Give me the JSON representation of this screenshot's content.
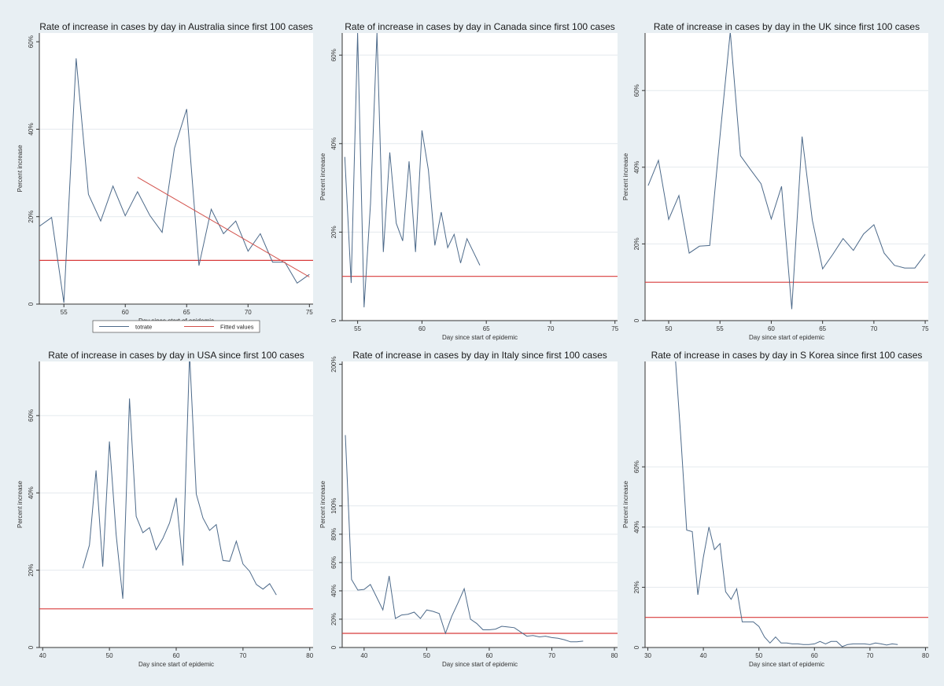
{
  "colors": {
    "background": "#e8eff3",
    "plot_bg": "#ffffff",
    "series_line": "#4d6a8a",
    "fitted_line": "#d2504a",
    "threshold_line": "#d83b3b",
    "grid": "#e4e9ee"
  },
  "legend": {
    "items": [
      {
        "label": "totrate",
        "color": "#4d6a8a"
      },
      {
        "label": "Fitted values",
        "color": "#d2504a"
      }
    ]
  },
  "chart_data": [
    {
      "type": "line",
      "title": "Rate of increase in cases by day in Australia since first 100 cases",
      "xlabel": "Day since start of epidemic",
      "ylabel": "Percent increase",
      "xlim": [
        53,
        75.3
      ],
      "ylim": [
        0,
        62
      ],
      "xticks": [
        55,
        60,
        65,
        70,
        75
      ],
      "yticks": [
        {
          "v": 0,
          "label": "0"
        },
        {
          "v": 20,
          "label": "20%"
        },
        {
          "v": 40,
          "label": "40%"
        },
        {
          "v": 60,
          "label": "60%"
        }
      ],
      "grid": [
        20,
        40
      ],
      "threshold": 10,
      "legend_placement": "bottom",
      "series": [
        {
          "name": "totrate",
          "x": [
            53,
            54,
            55,
            56,
            57,
            58,
            59,
            60,
            61,
            62,
            63,
            64,
            65,
            66,
            67,
            68,
            69,
            70,
            71,
            72,
            73,
            74,
            75
          ],
          "y": [
            17.8,
            19.8,
            0.3,
            56.2,
            25.1,
            19,
            27,
            20.2,
            25.7,
            20.3,
            16.4,
            35.6,
            44.6,
            8.8,
            21.7,
            16.1,
            19,
            12.1,
            16.1,
            9.6,
            9.6,
            4.8,
            6.8
          ]
        },
        {
          "name": "Fitted values",
          "x": [
            61,
            75
          ],
          "y": [
            29,
            6.2
          ]
        }
      ]
    },
    {
      "type": "line",
      "title": "Rate of increase in cases by day in Canada since first 100 cases",
      "xlabel": "Day since start of epidemic",
      "ylabel": "Percent increase",
      "xlim": [
        53.8,
        75.2
      ],
      "ylim": [
        0,
        65
      ],
      "xticks": [
        55,
        60,
        65,
        70,
        75
      ],
      "yticks": [
        {
          "v": 0,
          "label": "0"
        },
        {
          "v": 20,
          "label": "20%"
        },
        {
          "v": 40,
          "label": "40%"
        },
        {
          "v": 60,
          "label": "60%"
        }
      ],
      "grid": [
        20,
        40,
        60
      ],
      "threshold": 10,
      "series": [
        {
          "name": "totrate",
          "x": [
            54,
            54.5,
            55,
            55.5,
            56,
            56.5,
            57,
            57.5,
            58,
            58.5,
            59,
            59.5,
            60,
            60.5,
            61,
            61.5,
            62,
            62.5,
            63,
            63.5,
            64,
            64.5,
            65,
            65.5,
            66,
            66.5,
            67,
            67.5,
            68,
            68.5,
            69,
            69.5,
            70,
            70.5,
            71,
            71.5,
            72,
            72.5,
            73,
            73.5,
            74,
            74.5,
            75
          ],
          "y": [
            37,
            8.5,
            65,
            3,
            26.5,
            65,
            15.5,
            38,
            22,
            18,
            36,
            15.5,
            43,
            34,
            17,
            24.5,
            16.5,
            19.5,
            13,
            18.5,
            15.5,
            12.5,
            null,
            null,
            null,
            null,
            null,
            null,
            null,
            null,
            null,
            null,
            null,
            null,
            null,
            null,
            null,
            null,
            null,
            null,
            null,
            null,
            null
          ]
        }
      ]
    },
    {
      "type": "line",
      "title": "Rate of increase in cases by day in the UK since first 100 cases",
      "xlabel": "Day since start of epidemic",
      "ylabel": "Percent increase",
      "xlim": [
        47.7,
        75.3
      ],
      "ylim": [
        0,
        75
      ],
      "xticks": [
        50,
        55,
        60,
        65,
        70,
        75
      ],
      "yticks": [
        {
          "v": 0,
          "label": "0"
        },
        {
          "v": 20,
          "label": "20%"
        },
        {
          "v": 40,
          "label": "40%"
        },
        {
          "v": 60,
          "label": "60%"
        }
      ],
      "grid": [
        20,
        40,
        60
      ],
      "threshold": 10,
      "series": [
        {
          "name": "totrate",
          "x": [
            48,
            49,
            50,
            51,
            52,
            53,
            54,
            55,
            56,
            57,
            58,
            59,
            60,
            61,
            62,
            63,
            64,
            65,
            66,
            67,
            68,
            69,
            70,
            71,
            72,
            73,
            74,
            75
          ],
          "y": [
            35.2,
            41.8,
            26.4,
            32.6,
            17.6,
            19.4,
            19.6,
            48,
            75.3,
            43,
            39.3,
            35.7,
            26.5,
            35,
            3,
            48,
            26.2,
            13.5,
            17.3,
            21.4,
            18.3,
            22.6,
            25,
            17.6,
            14.4,
            13.7,
            13.7,
            17.3
          ]
        }
      ]
    },
    {
      "type": "line",
      "title": "Rate of increase in cases by day in USA since first 100 cases",
      "xlabel": "Day since start of epidemic",
      "ylabel": "Percent increase",
      "xlim": [
        39.5,
        80.5
      ],
      "ylim": [
        0,
        74
      ],
      "xticks": [
        40,
        50,
        60,
        70,
        80
      ],
      "yticks": [
        {
          "v": 0,
          "label": "0"
        },
        {
          "v": 20,
          "label": "20%"
        },
        {
          "v": 40,
          "label": "40%"
        },
        {
          "v": 60,
          "label": "60%"
        }
      ],
      "grid": [
        20,
        40,
        60
      ],
      "threshold": 10,
      "series": [
        {
          "name": "totrate",
          "x": [
            46,
            47,
            48,
            49,
            50,
            51,
            52,
            53,
            54,
            55,
            56,
            57,
            58,
            59,
            60,
            61,
            62,
            63,
            64,
            65,
            66,
            67,
            68,
            69,
            70,
            71,
            72,
            73,
            74,
            75
          ],
          "y": [
            20.5,
            26.5,
            45.8,
            20.9,
            53.3,
            29.3,
            12.6,
            64.4,
            33.9,
            29.7,
            31,
            25.3,
            28.2,
            32.2,
            38.7,
            21.2,
            76,
            39.7,
            33.5,
            30.3,
            31.8,
            22.5,
            22.3,
            27.5,
            21.6,
            19.7,
            16.3,
            15.1,
            16.5,
            13.6
          ]
        }
      ]
    },
    {
      "type": "line",
      "title": "Rate of increase in cases by day in Italy since first 100 cases",
      "xlabel": "Day since start of epidemic",
      "ylabel": "Percent increase",
      "xlim": [
        36.5,
        80.5
      ],
      "ylim": [
        0,
        202
      ],
      "xticks": [
        40,
        50,
        60,
        70,
        80
      ],
      "yticks": [
        {
          "v": 0,
          "label": "0"
        },
        {
          "v": 20,
          "label": "20%"
        },
        {
          "v": 40,
          "label": "40%"
        },
        {
          "v": 60,
          "label": "60%"
        },
        {
          "v": 80,
          "label": "80%"
        },
        {
          "v": 100,
          "label": "100%"
        },
        {
          "v": 200,
          "label": "200%"
        }
      ],
      "grid": [
        20,
        40,
        60,
        80,
        100
      ],
      "threshold": 10,
      "series": [
        {
          "name": "totrate",
          "x": [
            37,
            38,
            39,
            40,
            41,
            42,
            43,
            44,
            45,
            46,
            47,
            48,
            49,
            50,
            51,
            52,
            53,
            54,
            55,
            56,
            57,
            58,
            59,
            60,
            61,
            62,
            63,
            64,
            65,
            66,
            67,
            68,
            69,
            70,
            71,
            72,
            73,
            74,
            75
          ],
          "y": [
            150,
            48,
            40.5,
            41,
            44.5,
            35.5,
            26.5,
            50.5,
            20.5,
            23,
            23.5,
            25,
            20.5,
            26.5,
            25.5,
            24,
            10,
            22,
            31.5,
            41.5,
            20,
            17,
            12.5,
            12.5,
            13,
            15,
            14.5,
            14,
            11,
            8,
            8.5,
            7.5,
            8,
            7,
            6.5,
            5.5,
            4,
            4,
            4.5
          ]
        }
      ]
    },
    {
      "type": "line",
      "title": "Rate of increase in cases by day in S Korea since first 100 cases",
      "xlabel": "Day since start of epidemic",
      "ylabel": "Percent increase",
      "xlim": [
        29.5,
        80.5
      ],
      "ylim": [
        0,
        95
      ],
      "xticks": [
        30,
        40,
        50,
        60,
        70,
        80
      ],
      "yticks": [
        {
          "v": 0,
          "label": "0"
        },
        {
          "v": 20,
          "label": "20%"
        },
        {
          "v": 40,
          "label": "40%"
        },
        {
          "v": 60,
          "label": "60%"
        }
      ],
      "grid": [
        20,
        40,
        60
      ],
      "threshold": 10,
      "series": [
        {
          "name": "totrate",
          "x": [
            35,
            36,
            37,
            38,
            39,
            40,
            41,
            42,
            43,
            44,
            45,
            46,
            47,
            48,
            49,
            50,
            51,
            52,
            53,
            54,
            55,
            56,
            57,
            58,
            59,
            60,
            61,
            62,
            63,
            64,
            65,
            66,
            67,
            68,
            69,
            70,
            71,
            72,
            73,
            74,
            75
          ],
          "y": [
            95,
            68,
            39,
            38.5,
            17.5,
            30,
            40,
            32.5,
            34.5,
            18.5,
            16,
            19.5,
            8.5,
            8.5,
            8.5,
            7,
            3.5,
            1.5,
            3.5,
            1.5,
            1.5,
            1.2,
            1.2,
            1,
            1,
            1.2,
            2,
            1.2,
            2,
            2,
            0.3,
            1,
            1.2,
            1.2,
            1.2,
            1,
            1.5,
            1.2,
            0.8,
            1.2,
            1
          ]
        }
      ]
    }
  ]
}
